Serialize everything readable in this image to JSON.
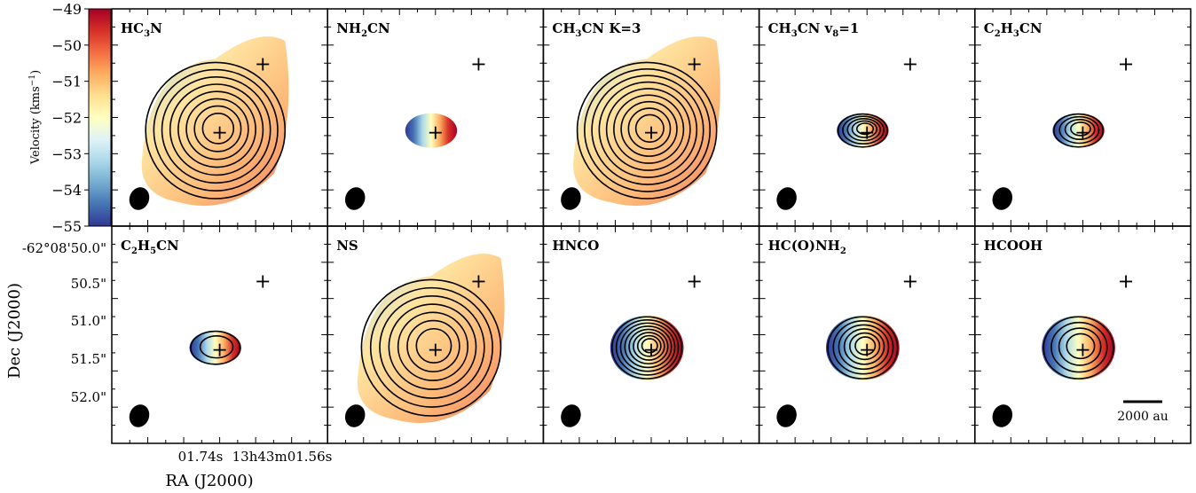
{
  "chart_data": {
    "type": "heatmap",
    "description": "Velocity maps (moment 1) with integrated-intensity contours for ten molecular lines",
    "colorbar": {
      "label": "Velocity (kms",
      "label_sup": "−1",
      "label_end": ")",
      "range": [
        -55,
        -49
      ],
      "ticks": [
        "−49",
        "−50",
        "−51",
        "−52",
        "−53",
        "−54",
        "−55"
      ],
      "colormap": "RdYlBu",
      "colors": [
        "#a50026",
        "#d73027",
        "#f46d43",
        "#fdae61",
        "#fee090",
        "#ffffbf",
        "#e0f3f8",
        "#abd9e9",
        "#74add1",
        "#4575b4",
        "#313695"
      ]
    },
    "xaxis": {
      "label": "RA (J2000)",
      "ticks": [
        "01.74s",
        "13h43m01.56s"
      ]
    },
    "yaxis": {
      "label": "Dec (J2000)",
      "ticks": [
        "-62°08'50.0\"",
        "50.5\"",
        "51.0\"",
        "51.5\"",
        "52.0\""
      ]
    },
    "scalebar_label": "2000 au",
    "panels": [
      {
        "main": "HC",
        "sub": "3",
        "rest": "N",
        "extent": "large",
        "gradient": "none",
        "contours": 8
      },
      {
        "main": "NH",
        "sub": "2",
        "rest": "CN",
        "extent": "compact",
        "gradient": "blue-red",
        "contours": 0
      },
      {
        "main": "CH",
        "sub": "3",
        "rest": "CN K=3",
        "extent": "large",
        "gradient": "blue-red",
        "contours": 9
      },
      {
        "main": "CH",
        "sub": "3",
        "rest": "CN v",
        "sub2": "8",
        "rest2": "=1",
        "extent": "compact",
        "gradient": "blue-red",
        "contours": 5
      },
      {
        "main": "C",
        "sub": "2",
        "rest": "H",
        "sub2": "3",
        "rest2": "CN",
        "extent": "compact",
        "gradient": "blue-red",
        "contours": 4
      },
      {
        "main": "C",
        "sub": "2",
        "rest": "H",
        "sub2": "5",
        "rest2": "CN",
        "extent": "compact",
        "gradient": "blue-red",
        "contours": 2
      },
      {
        "main": "NS",
        "extent": "large",
        "gradient": "blue-red",
        "contours": 7
      },
      {
        "main": "HNCO",
        "extent": "medium",
        "gradient": "blue-red",
        "contours": 8
      },
      {
        "main": "HC(O)NH",
        "sub": "2",
        "extent": "medium",
        "gradient": "blue-red",
        "contours": 6
      },
      {
        "main": "HCOOH",
        "extent": "medium",
        "gradient": "blue-red",
        "contours": 4
      }
    ]
  }
}
